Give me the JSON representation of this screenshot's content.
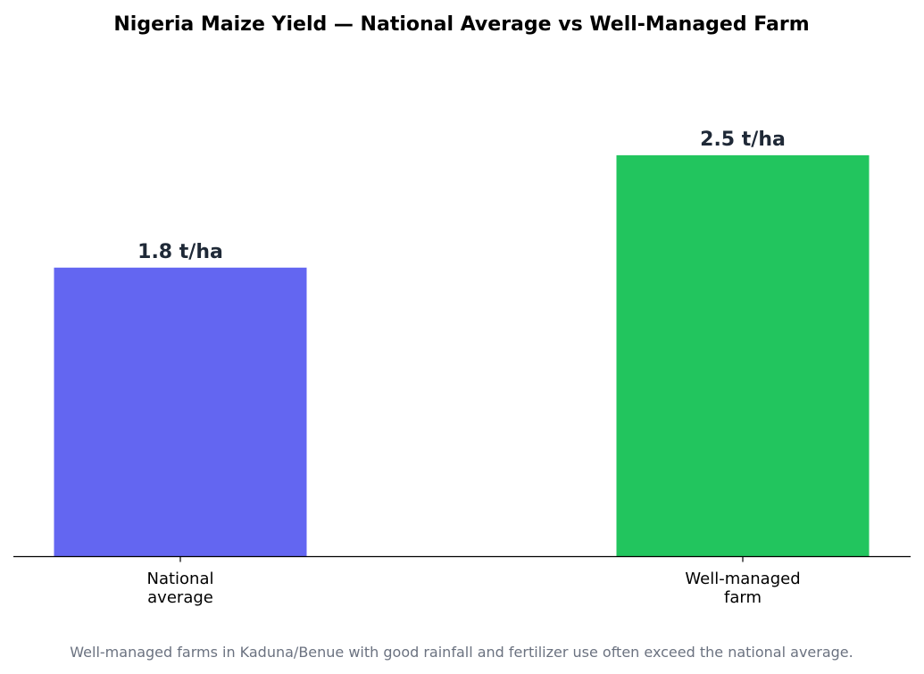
{
  "chart_data": {
    "type": "bar",
    "title": "Nigeria Maize Yield — National Average vs Well-Managed Farm",
    "categories": [
      [
        "National",
        "average"
      ],
      [
        "Well-managed",
        "farm"
      ]
    ],
    "values": [
      1.8,
      2.5
    ],
    "value_labels": [
      "1.8 t/ha",
      "2.5 t/ha"
    ],
    "colors": [
      "#6366f1",
      "#22c55e"
    ],
    "ylim": [
      0,
      3.2
    ],
    "grid": false,
    "yaxis_visible": false,
    "xlabel": "",
    "ylabel": "",
    "footnote": "Well-managed farms in Kaduna/Benue with good rainfall and fertilizer use often exceed the national average."
  }
}
